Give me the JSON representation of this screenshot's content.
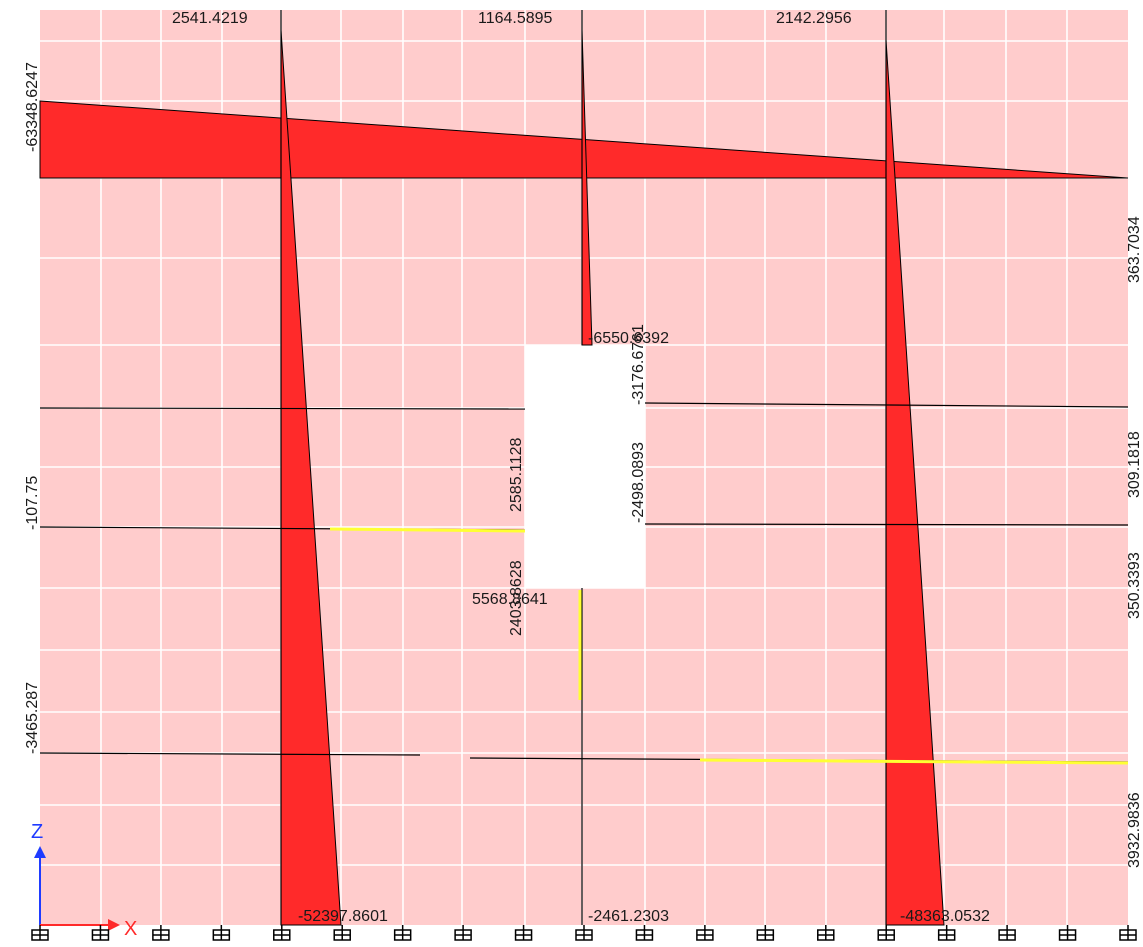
{
  "view": {
    "panel_fill": "#ffcccc",
    "diagram_fill": "#ff2a2a",
    "grid_color": "#ffffff",
    "frame_color": "#000000",
    "highlight_color": "#ffff33",
    "opening_fill": "#ffffff"
  },
  "axes": {
    "z_label": "Z",
    "x_label": "X",
    "z_color": "#1f3bff",
    "x_color": "#ff2a2a"
  },
  "labels": {
    "col1_top": "2541.4219",
    "col2_top": "1164.5895",
    "col3_top": "2142.2956",
    "beam_top_left": "-63348.6247",
    "beam_top_right": "363.7034",
    "col2_opening_top": "-6550.6392",
    "opening_right_top": "-3176.6761",
    "opening_right_mid": "-2498.0893",
    "opening_left_top": "2585.1128",
    "opening_left_bottom": "2403.8628",
    "opening_bottom": "5568.8641",
    "left_mid": "-107.75",
    "left_low": "-3465.287",
    "right_mid_upper": "309.1818",
    "right_mid_lower": "350.3393",
    "right_low": "3932.9836",
    "col1_bottom": "-52397.8601",
    "col2_bottom": "-2461.2303",
    "col3_bottom": "-48363.0532"
  },
  "supports": {
    "icon": "fixed-support-icon",
    "count": 19
  }
}
